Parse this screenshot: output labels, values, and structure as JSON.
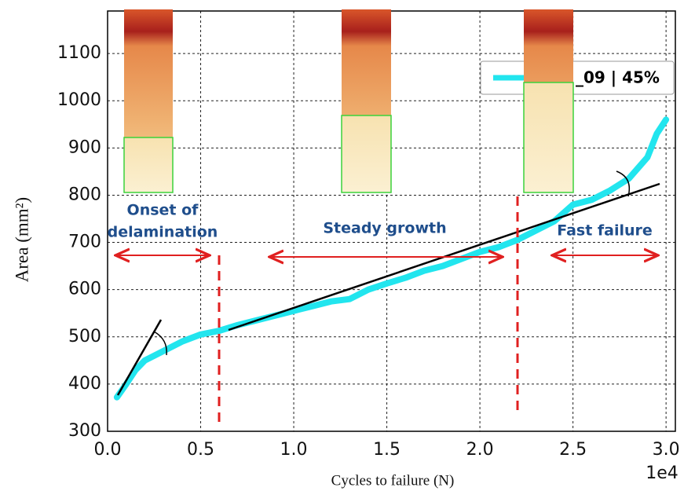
{
  "chart_data": {
    "type": "line",
    "x_label": "Cycles to failure (N)",
    "y_label": "Area (mm²)",
    "x_multiplier": "1e4",
    "x": [
      0.05,
      0.1,
      0.15,
      0.2,
      0.25,
      0.3,
      0.35,
      0.4,
      0.5,
      0.6,
      0.7,
      0.8,
      0.9,
      1.0,
      1.1,
      1.2,
      1.3,
      1.4,
      1.5,
      1.6,
      1.7,
      1.8,
      1.9,
      2.0,
      2.1,
      2.2,
      2.3,
      2.4,
      2.5,
      2.6,
      2.7,
      2.8,
      2.9,
      2.95,
      3.0
    ],
    "series": [
      {
        "name": "_09 | 45%",
        "color": "#22e5ee",
        "values": [
          372,
          400,
          430,
          450,
          460,
          470,
          480,
          490,
          505,
          513,
          525,
          535,
          545,
          555,
          565,
          575,
          580,
          600,
          613,
          625,
          640,
          650,
          665,
          680,
          690,
          705,
          725,
          745,
          780,
          790,
          810,
          835,
          880,
          930,
          960
        ]
      }
    ],
    "xlim": [
      0,
      3.05
    ],
    "ylim": [
      300,
      1190
    ],
    "xticks": [
      {
        "value": 0,
        "label": "0.0"
      },
      0.5,
      {
        "value": 1,
        "label": "1.0"
      },
      1.5,
      {
        "value": 2,
        "label": "2.0"
      },
      2.5,
      {
        "value": 3,
        "label": "3.0"
      }
    ],
    "yticks": [
      300,
      400,
      500,
      600,
      700,
      800,
      900,
      1000,
      1100
    ],
    "grid": true,
    "legend": "upper right",
    "annotations": [
      "Onset of",
      "delamination",
      "Steady growth",
      "Fast failure"
    ]
  }
}
